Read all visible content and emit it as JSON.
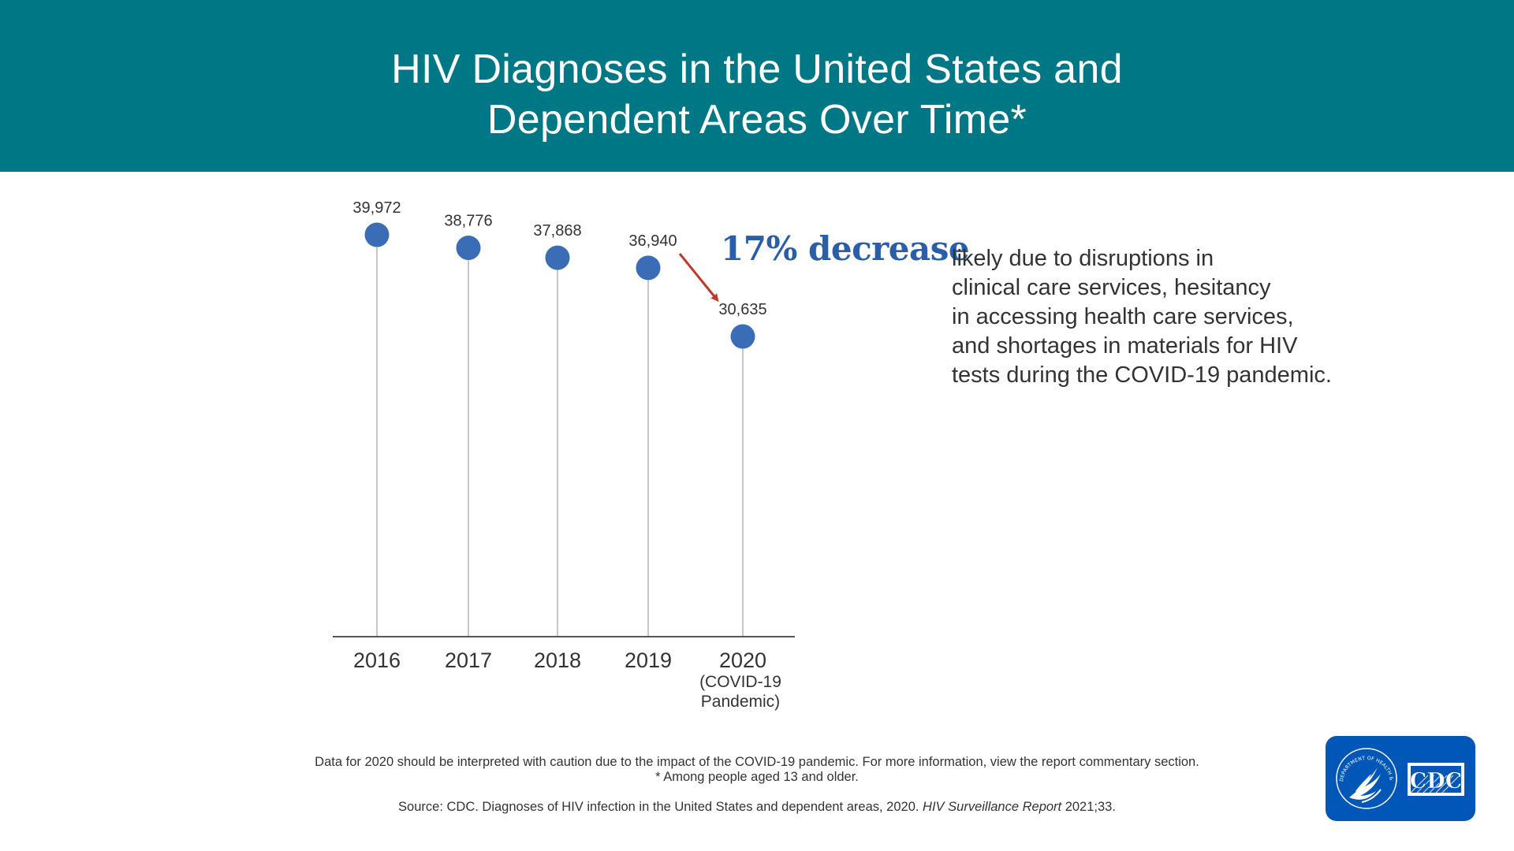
{
  "header": {
    "title_line1": "HIV Diagnoses in the United States and",
    "title_line2": "Dependent Areas Over Time*"
  },
  "chart_data": {
    "type": "scatter",
    "categories": [
      "2016",
      "2017",
      "2018",
      "2019",
      "2020"
    ],
    "category_sublabels": [
      "",
      "",
      "",
      "",
      "(COVID-19 Pandemic)"
    ],
    "values": [
      39972,
      38776,
      37868,
      36940,
      30635
    ],
    "value_labels": [
      "39,972",
      "38,776",
      "37,868",
      "36,940",
      "30,635"
    ],
    "title": "",
    "xlabel": "",
    "ylabel": "",
    "grid": false,
    "colors": {
      "marker": "#3a6db5",
      "stem": "#c8c8c8",
      "axis": "#555555",
      "arrow": "#c0392b"
    },
    "annotation": {
      "from": "2019",
      "to": "2020",
      "percent_label": "17% decrease",
      "text_lines": [
        "likely due to disruptions in",
        "clinical care services, hesitancy",
        "in accessing health care services,",
        "and shortages in materials for HIV",
        "tests during the COVID-19 pandemic."
      ]
    }
  },
  "footer": {
    "note_line1": "Data for 2020 should be interpreted with caution due to the impact of the COVID-19 pandemic. For more information, view the report commentary section.",
    "note_line2": "* Among people aged 13 and older.",
    "source_prefix": "Source: CDC. Diagnoses of HIV infection in the United States and dependent areas, 2020. ",
    "source_italic": "HIV Surveillance Report",
    "source_suffix": " 2021;33."
  },
  "logos": {
    "hhs_seal_text": "DEPARTMENT OF HEALTH & HUMAN SERVICES USA",
    "cdc_text": "CDC",
    "color": "#0057b8"
  }
}
